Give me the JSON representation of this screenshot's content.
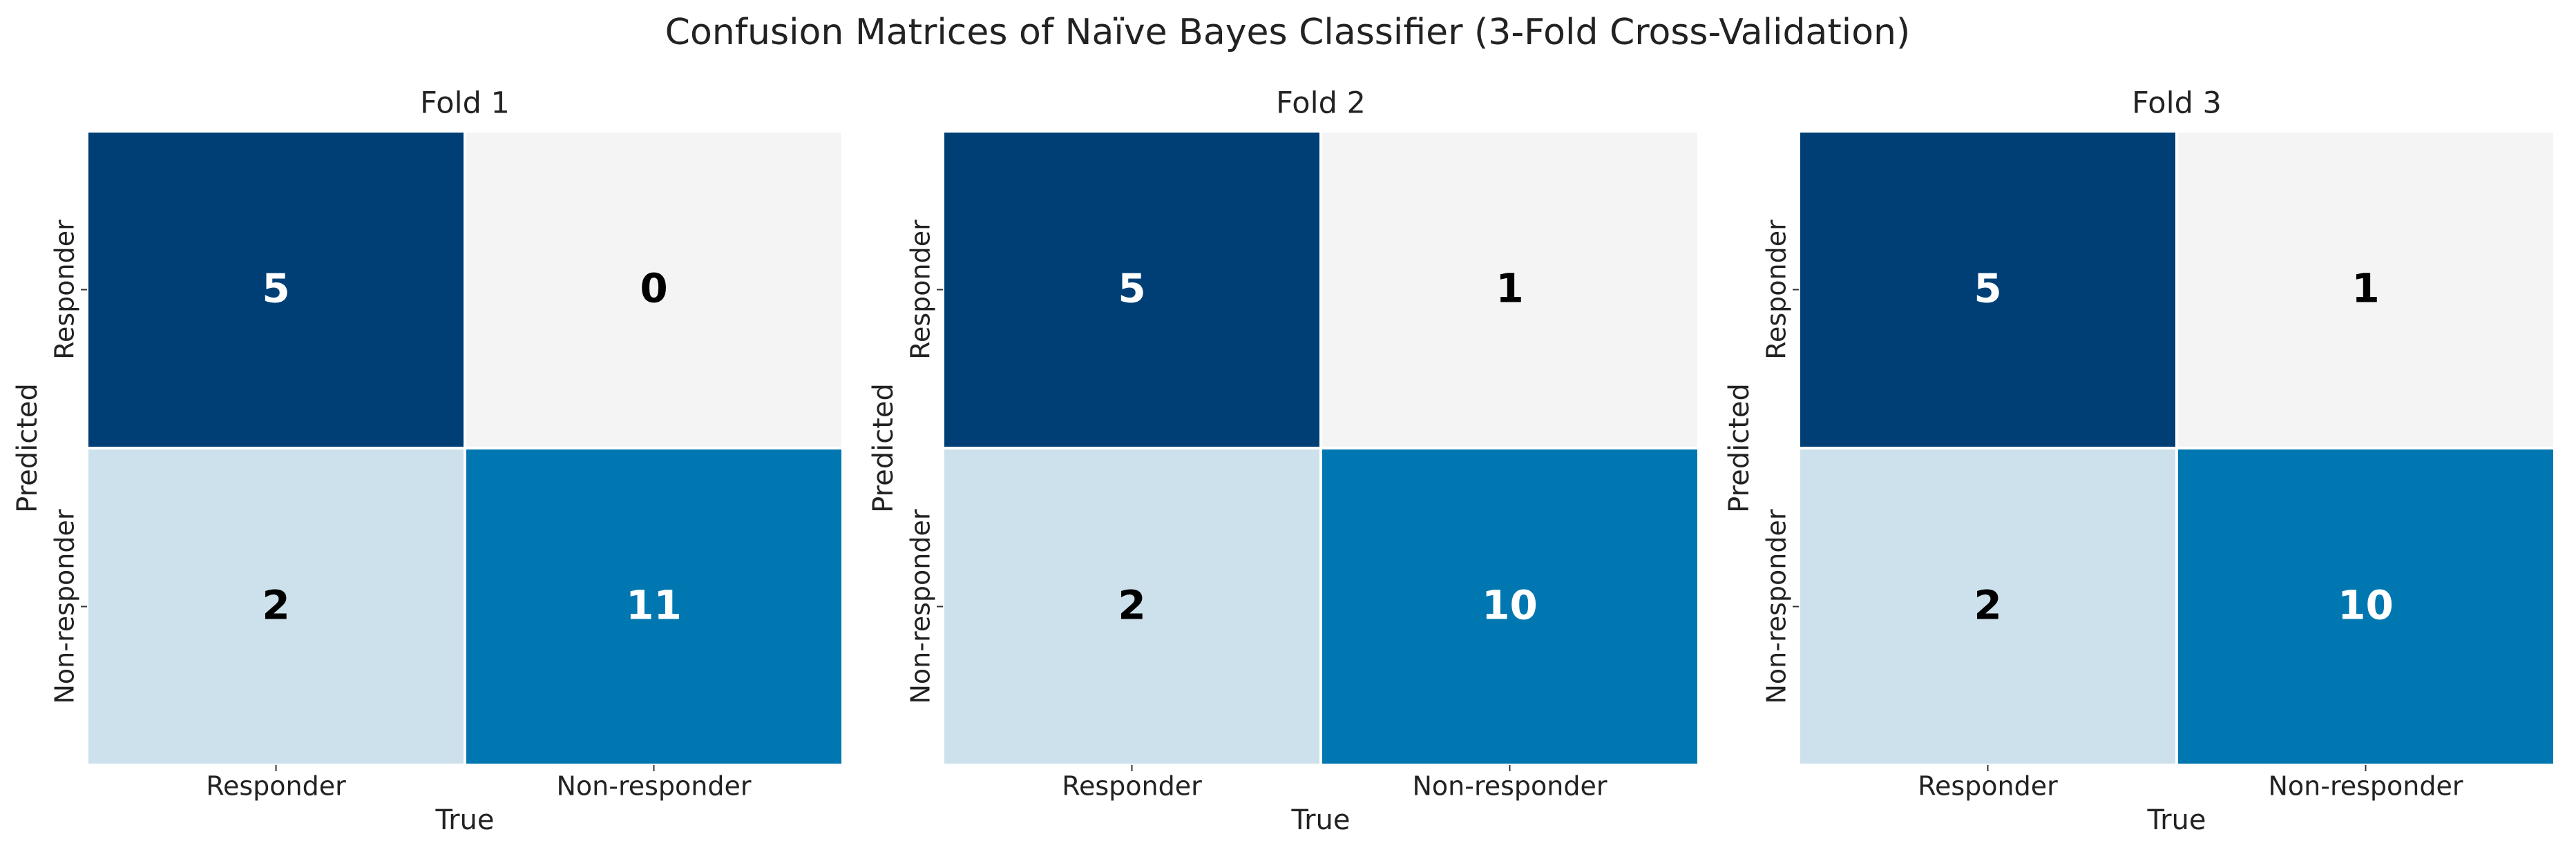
{
  "title": "Confusion Matrices of Naïve Bayes Classifier (3-Fold Cross-Validation)",
  "chart_data": [
    {
      "type": "heatmap",
      "title": "Fold 1",
      "xlabel": "True",
      "ylabel": "Predicted",
      "x_categories": [
        "Responder",
        "Non-responder"
      ],
      "y_categories": [
        "Responder",
        "Non-responder"
      ],
      "values": [
        [
          5,
          0
        ],
        [
          2,
          11
        ]
      ],
      "colors": [
        [
          "#003f75",
          "#f4f4f4"
        ],
        [
          "#cde1ec",
          "#0077b0"
        ]
      ],
      "text_colors": [
        [
          "#ffffff",
          "#000000"
        ],
        [
          "#000000",
          "#ffffff"
        ]
      ]
    },
    {
      "type": "heatmap",
      "title": "Fold 2",
      "xlabel": "True",
      "ylabel": "Predicted",
      "x_categories": [
        "Responder",
        "Non-responder"
      ],
      "y_categories": [
        "Responder",
        "Non-responder"
      ],
      "values": [
        [
          5,
          1
        ],
        [
          2,
          10
        ]
      ],
      "colors": [
        [
          "#003f75",
          "#f4f4f4"
        ],
        [
          "#cde1ec",
          "#0077b0"
        ]
      ],
      "text_colors": [
        [
          "#ffffff",
          "#000000"
        ],
        [
          "#000000",
          "#ffffff"
        ]
      ]
    },
    {
      "type": "heatmap",
      "title": "Fold 3",
      "xlabel": "True",
      "ylabel": "Predicted",
      "x_categories": [
        "Responder",
        "Non-responder"
      ],
      "y_categories": [
        "Responder",
        "Non-responder"
      ],
      "values": [
        [
          5,
          1
        ],
        [
          2,
          10
        ]
      ],
      "colors": [
        [
          "#003f75",
          "#f4f4f4"
        ],
        [
          "#cde1ec",
          "#0077b0"
        ]
      ],
      "text_colors": [
        [
          "#ffffff",
          "#000000"
        ],
        [
          "#000000",
          "#ffffff"
        ]
      ]
    }
  ]
}
